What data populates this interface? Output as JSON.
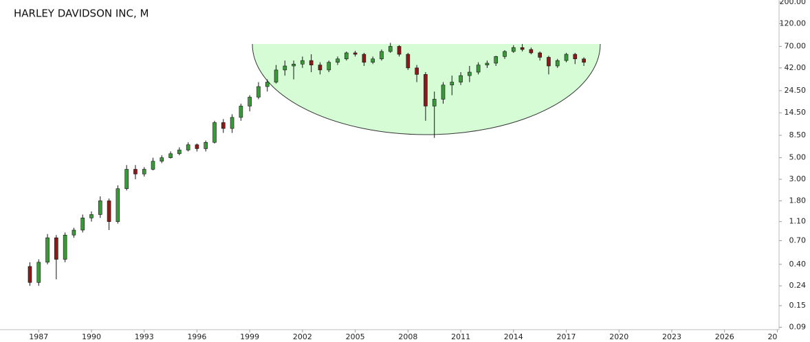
{
  "chart_data": {
    "type": "candlestick",
    "title": "HARLEY DAVIDSON INC, M",
    "x": [
      1986.5,
      1987.0,
      1987.5,
      1988.0,
      1988.5,
      1989.0,
      1989.5,
      1990.0,
      1990.5,
      1991.0,
      1991.5,
      1992.0,
      1992.5,
      1993.0,
      1993.5,
      1994.0,
      1994.5,
      1995.0,
      1995.5,
      1996.0,
      1996.5,
      1997.0,
      1997.5,
      1998.0,
      1998.5,
      1999.0,
      1999.5,
      2000.0,
      2000.5,
      2001.0,
      2001.5,
      2002.0,
      2002.5,
      2003.0,
      2003.5,
      2004.0,
      2004.5,
      2005.0,
      2005.5,
      2006.0,
      2006.5,
      2007.0,
      2007.5,
      2008.0,
      2008.5,
      2009.0,
      2009.5,
      2010.0,
      2010.5,
      2011.0,
      2011.5,
      2012.0,
      2012.5,
      2013.0,
      2013.5,
      2014.0,
      2014.5,
      2015.0,
      2015.5,
      2016.0,
      2016.5,
      2017.0,
      2017.5,
      2018.0
    ],
    "open": [
      0.38,
      0.26,
      0.42,
      0.75,
      0.45,
      0.8,
      0.9,
      1.2,
      1.3,
      1.8,
      1.1,
      2.4,
      3.8,
      3.4,
      3.8,
      4.6,
      5.0,
      5.5,
      6.0,
      6.8,
      6.2,
      7.2,
      11.5,
      10,
      13,
      17,
      21,
      27,
      30,
      40,
      44,
      46,
      50,
      45,
      40,
      48,
      52,
      60,
      58,
      48,
      52,
      62,
      70,
      58,
      42,
      36,
      17,
      20,
      28,
      30,
      35,
      38,
      45,
      47,
      55,
      62,
      68,
      65,
      60,
      54,
      44,
      50,
      58,
      52
    ],
    "high": [
      0.42,
      0.45,
      0.82,
      0.8,
      0.85,
      0.95,
      1.3,
      1.4,
      2.0,
      1.9,
      2.6,
      4.2,
      4.2,
      4.0,
      5.0,
      5.3,
      5.8,
      6.4,
      7.2,
      7.0,
      7.5,
      12.0,
      12.5,
      14,
      18,
      22,
      30,
      32,
      45,
      50,
      50,
      55,
      58,
      48,
      50,
      55,
      62,
      63,
      60,
      55,
      65,
      76,
      72,
      60,
      45,
      38,
      24,
      30,
      35,
      38,
      44,
      48,
      50,
      56,
      64,
      72,
      74,
      68,
      62,
      56,
      52,
      60,
      60,
      54
    ],
    "low": [
      0.24,
      0.24,
      0.4,
      0.28,
      0.42,
      0.75,
      0.85,
      1.1,
      1.2,
      0.9,
      1.05,
      2.3,
      3.0,
      3.2,
      3.7,
      4.4,
      4.9,
      5.3,
      5.8,
      5.8,
      5.8,
      7.0,
      9.0,
      9,
      12,
      15,
      20,
      24,
      29,
      35,
      32,
      42,
      38,
      36,
      38,
      45,
      50,
      55,
      44,
      46,
      50,
      60,
      55,
      40,
      30,
      12,
      8.0,
      18,
      22,
      28,
      30,
      36,
      42,
      44,
      52,
      60,
      62,
      58,
      50,
      36,
      42,
      48,
      46,
      44
    ],
    "close": [
      0.26,
      0.42,
      0.75,
      0.45,
      0.8,
      0.9,
      1.2,
      1.3,
      1.8,
      1.1,
      2.4,
      3.8,
      3.4,
      3.8,
      4.6,
      5.0,
      5.5,
      6.0,
      6.8,
      6.2,
      7.2,
      11.5,
      10,
      13,
      17,
      21,
      27,
      30,
      40,
      44,
      46,
      50,
      45,
      40,
      48,
      52,
      60,
      58,
      48,
      52,
      62,
      70,
      58,
      42,
      36,
      17,
      20,
      28,
      30,
      35,
      38,
      45,
      47,
      55,
      62,
      68,
      65,
      60,
      54,
      44,
      50,
      58,
      52,
      48
    ],
    "up_color": "#3a9a3a",
    "down_color": "#8b1a1a",
    "log_y": true,
    "xlim": [
      1984.8,
      2029.1
    ],
    "xticks": [
      1987,
      1990,
      1993,
      1996,
      1999,
      2002,
      2005,
      2008,
      2011,
      2014,
      2017,
      2020,
      2023,
      2026,
      {
        "value": 2029,
        "label": "20"
      }
    ],
    "ylim": [
      0.085,
      210
    ],
    "yticks": [
      {
        "value": 200,
        "label": "200.00"
      },
      {
        "value": 120,
        "label": "120.00"
      },
      {
        "value": 70,
        "label": "70.00"
      },
      {
        "value": 42,
        "label": "42.00"
      },
      {
        "value": 24.5,
        "label": "24.50"
      },
      {
        "value": 14.5,
        "label": "14.50"
      },
      {
        "value": 8.5,
        "label": "8.50"
      },
      {
        "value": 5,
        "label": "5.00"
      },
      {
        "value": 3,
        "label": "3.00"
      },
      {
        "value": 1.8,
        "label": "1.80"
      },
      {
        "value": 1.1,
        "label": "1.10"
      },
      {
        "value": 0.7,
        "label": "0.70"
      },
      {
        "value": 0.4,
        "label": "0.40"
      },
      {
        "value": 0.24,
        "label": "0.24"
      },
      {
        "value": 0.15,
        "label": "0.15"
      },
      {
        "value": 0.09,
        "label": "0.09"
      }
    ]
  }
}
